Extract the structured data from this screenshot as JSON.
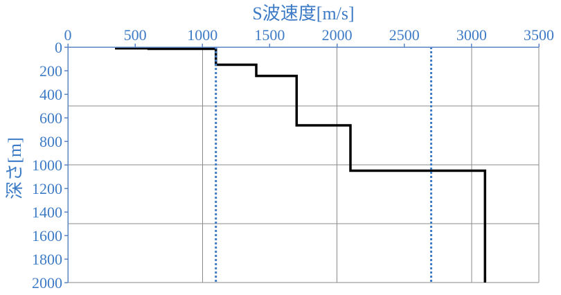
{
  "chart_data": {
    "type": "line",
    "title": "",
    "xlabel": "S波速度[m/s]",
    "ylabel": "深さ[m]",
    "x_axis_position": "top",
    "y_axis_inverted": true,
    "xlim": [
      0,
      3500
    ],
    "ylim": [
      0,
      2000
    ],
    "xticks": [
      0,
      500,
      1000,
      1500,
      2000,
      2500,
      3000,
      3500
    ],
    "yticks": [
      0,
      200,
      400,
      600,
      800,
      1000,
      1200,
      1400,
      1600,
      1800,
      2000
    ],
    "x_gridlines": [
      1000,
      2000,
      3000
    ],
    "y_gridlines": [
      500,
      1000,
      1500,
      2000
    ],
    "grid": true,
    "legend": "none",
    "series": [
      {
        "style": "solid",
        "color": "#000000",
        "points": [
          [
            350,
            10
          ],
          [
            600,
            10
          ],
          [
            600,
            15
          ],
          [
            1100,
            15
          ],
          [
            1100,
            150
          ],
          [
            1400,
            150
          ],
          [
            1400,
            245
          ],
          [
            1700,
            245
          ],
          [
            1700,
            665
          ],
          [
            2100,
            665
          ],
          [
            2100,
            1050
          ],
          [
            3100,
            1050
          ],
          [
            3100,
            2000
          ]
        ]
      },
      {
        "style": "dotted",
        "color": "#3d7bc6",
        "points": [
          [
            1100,
            0
          ],
          [
            1100,
            2000
          ]
        ]
      },
      {
        "style": "dotted",
        "color": "#3d7bc6",
        "points": [
          [
            2700,
            0
          ],
          [
            2700,
            2000
          ]
        ]
      }
    ]
  }
}
